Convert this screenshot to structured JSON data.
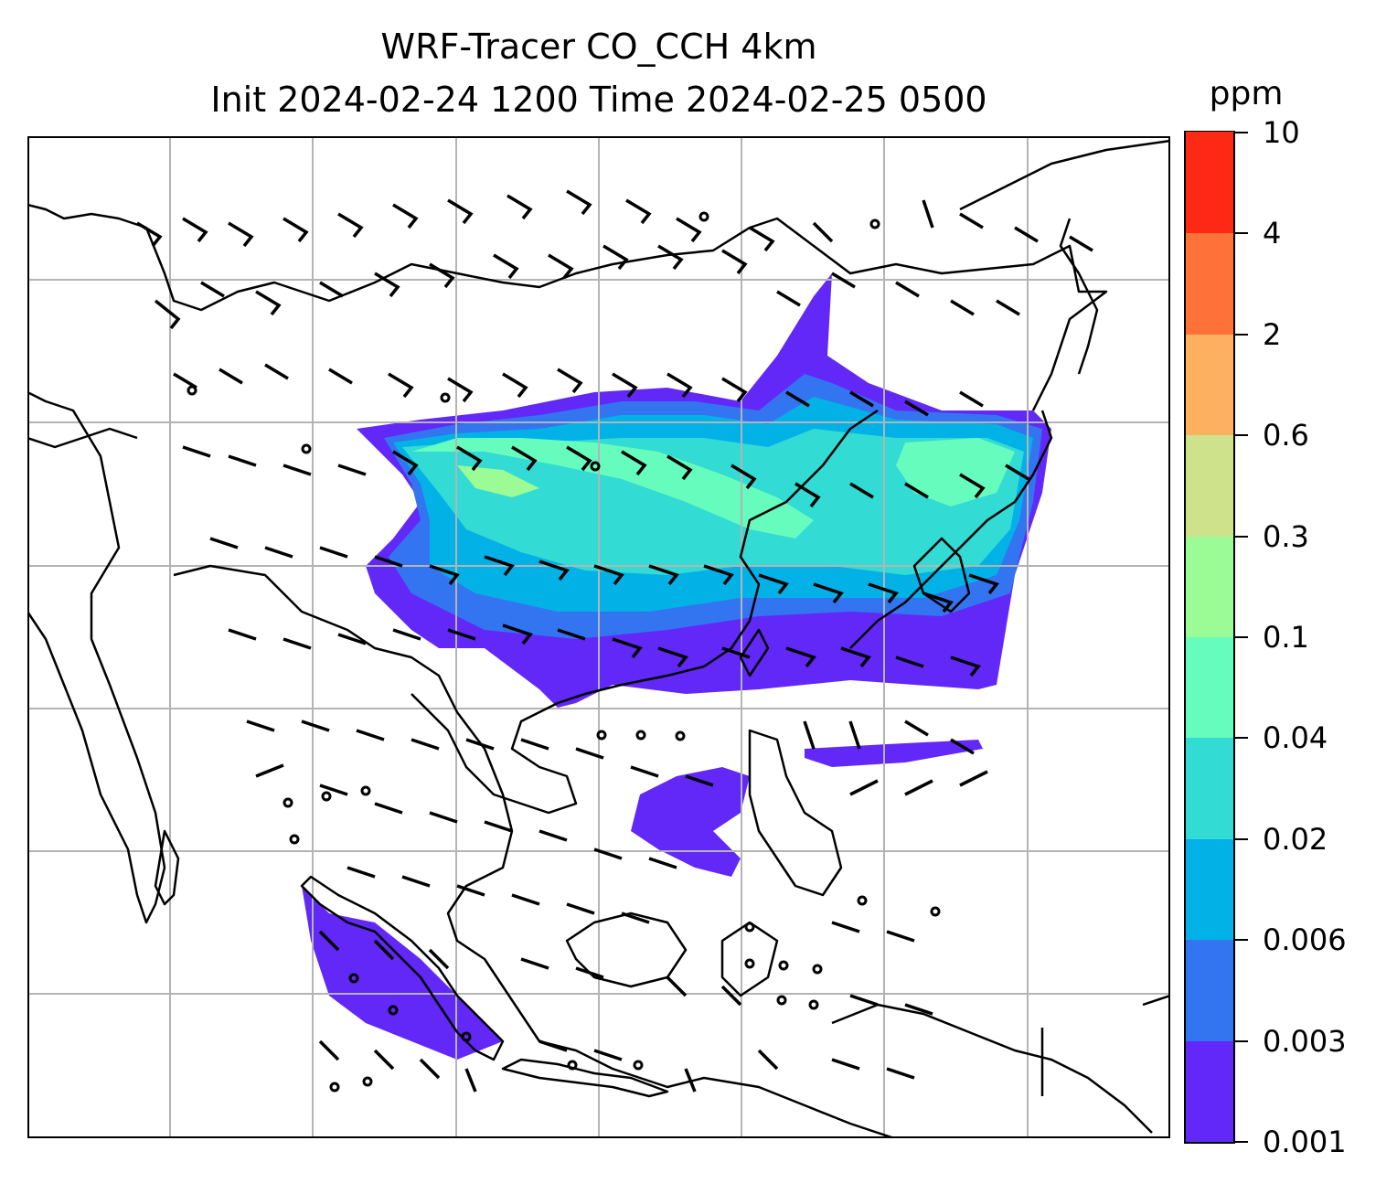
{
  "title": {
    "line1": "WRF-Tracer CO_CCH 4km",
    "line2": "Init 2024-02-24 1200 Time 2024-02-25 0500"
  },
  "colorbar": {
    "unit": "ppm",
    "levels": [
      "0.001",
      "0.003",
      "0.006",
      "0.02",
      "0.04",
      "0.1",
      "0.3",
      "0.6",
      "2",
      "4",
      "10"
    ],
    "colors": [
      "#6228f8",
      "#3375f1",
      "#02b2e7",
      "#32dbd3",
      "#66fcbd",
      "#9bfc95",
      "#cee28b",
      "#fdb060",
      "#fe7139",
      "#fe2915"
    ]
  },
  "map": {
    "gridlines": true,
    "concentration_color_default": "#6228f8",
    "coastline_color": "#000000",
    "grid_color": "#b4b4b4"
  }
}
